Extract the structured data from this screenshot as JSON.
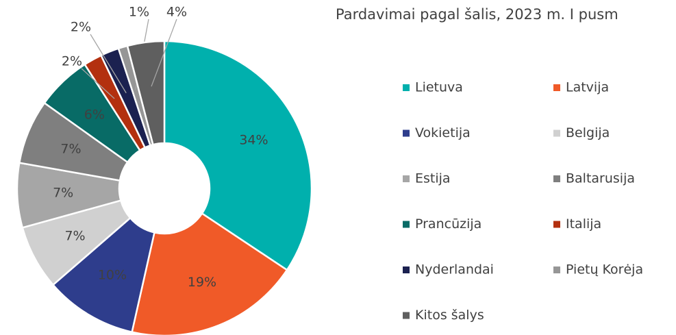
{
  "chart_data": {
    "type": "pie",
    "donut": true,
    "title": "Pardavimai pagal šalis, 2023 m. I pusm",
    "categories": [
      "Lietuva",
      "Latvija",
      "Vokietija",
      "Belgija",
      "Estija",
      "Baltarusija",
      "Prancūzija",
      "Italija",
      "Nyderlandai",
      "Pietų Korėja",
      "Kitos šalys"
    ],
    "values": [
      34,
      19,
      10,
      7,
      7,
      7,
      6,
      2,
      2,
      1,
      4
    ],
    "value_labels": [
      "34%",
      "19%",
      "10%",
      "7%",
      "7%",
      "7%",
      "6%",
      "2%",
      "2%",
      "1%",
      "4%"
    ],
    "colors": [
      "#00b0ad",
      "#f05a28",
      "#2e3d8c",
      "#d0d0d0",
      "#a6a6a6",
      "#7f7f7f",
      "#086b66",
      "#b3300f",
      "#1b2150",
      "#969696",
      "#5f5f5f"
    ],
    "legend": "right"
  }
}
